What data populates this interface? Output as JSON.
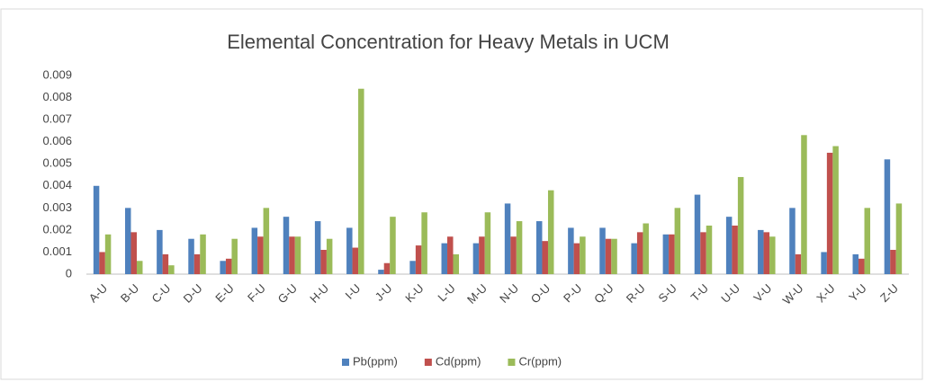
{
  "chart_data": {
    "type": "bar",
    "title": "Elemental Concentration for Heavy Metals in UCM",
    "categories": [
      "A-U",
      "B-U",
      "C-U",
      "D-U",
      "E-U",
      "F-U",
      "G-U",
      "H-U",
      "I-U",
      "J-U",
      "K-U",
      "L-U",
      "M-U",
      "N-U",
      "O-U",
      "P-U",
      "Q-U",
      "R-U",
      "S-U",
      "T-U",
      "U-U",
      "V-U",
      "W-U",
      "X-U",
      "Y-U",
      "Z-U"
    ],
    "series": [
      {
        "name": "Pb(ppm)",
        "color": "#4f81bd",
        "values": [
          0.004,
          0.003,
          0.002,
          0.0016,
          0.0006,
          0.0021,
          0.0026,
          0.0024,
          0.0021,
          0.0002,
          0.0006,
          0.0014,
          0.0014,
          0.0032,
          0.0024,
          0.0021,
          0.0021,
          0.0014,
          0.0018,
          0.0036,
          0.0026,
          0.002,
          0.003,
          0.001,
          0.0009,
          0.0052
        ]
      },
      {
        "name": "Cd(ppm)",
        "color": "#c0504d",
        "values": [
          0.001,
          0.0019,
          0.0009,
          0.0009,
          0.0007,
          0.0017,
          0.0017,
          0.0011,
          0.0012,
          0.0005,
          0.0013,
          0.0017,
          0.0017,
          0.0017,
          0.0015,
          0.0014,
          0.0016,
          0.0019,
          0.0018,
          0.0019,
          0.0022,
          0.0019,
          0.0009,
          0.0055,
          0.0007,
          0.0011
        ]
      },
      {
        "name": "Cr(ppm)",
        "color": "#9bbb59",
        "values": [
          0.0018,
          0.0006,
          0.0004,
          0.0018,
          0.0016,
          0.003,
          0.0017,
          0.0016,
          0.0084,
          0.0026,
          0.0028,
          0.0009,
          0.0028,
          0.0024,
          0.0038,
          0.0017,
          0.0016,
          0.0023,
          0.003,
          0.0022,
          0.0044,
          0.0017,
          0.0063,
          0.0058,
          0.003,
          0.0032
        ]
      }
    ],
    "ylim": [
      0,
      0.009
    ],
    "yticks": [
      0,
      0.001,
      0.002,
      0.003,
      0.004,
      0.005,
      0.006,
      0.007,
      0.008,
      0.009
    ],
    "grid": false,
    "legend": "bottom"
  }
}
